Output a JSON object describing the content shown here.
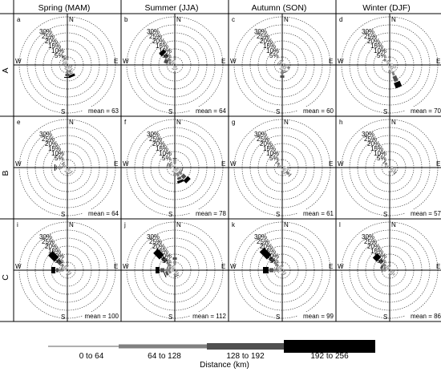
{
  "columns": [
    "Spring (MAM)",
    "Summer (JJA)",
    "Autumn (SON)",
    "Winter (DJF)"
  ],
  "rows": [
    "A",
    "B",
    "C"
  ],
  "ring_labels": [
    "30%",
    "25%",
    "20%",
    "15%",
    "10%",
    "5%"
  ],
  "compass": {
    "n": "N",
    "e": "E",
    "s": "S",
    "w": "W"
  },
  "legend": {
    "title": "Distance (km)",
    "classes": [
      {
        "label": "0 to 64",
        "color": "#b0b0b0"
      },
      {
        "label": "64 to 128",
        "color": "#808080"
      },
      {
        "label": "128 to 192",
        "color": "#505050"
      },
      {
        "label": "192 to 256",
        "color": "#000000"
      }
    ]
  },
  "chart_data": {
    "type": "wind-rose",
    "directions": [
      "N",
      "NNE",
      "NE",
      "ENE",
      "E",
      "ESE",
      "SE",
      "SSE",
      "S",
      "SSW",
      "SW",
      "WSW",
      "W",
      "WNW",
      "NW",
      "NNW"
    ],
    "rmax": 30,
    "rings": [
      5,
      10,
      15,
      20,
      25,
      30
    ],
    "panels": [
      {
        "letter": "a",
        "row": "A",
        "column": "Spring (MAM)",
        "mean": "mean = 63",
        "segments": [
          [
            3,
            1,
            0,
            0
          ],
          [
            1,
            0,
            0,
            0
          ],
          [
            1,
            0,
            0,
            0
          ],
          [
            1,
            0,
            0,
            0
          ],
          [
            1,
            0,
            0,
            0
          ],
          [
            2,
            1,
            0,
            0
          ],
          [
            3,
            1,
            0,
            0
          ],
          [
            3,
            2,
            1,
            2
          ],
          [
            3,
            2,
            2,
            1
          ],
          [
            2,
            1,
            0,
            0
          ],
          [
            1,
            1,
            0,
            0
          ],
          [
            1,
            0,
            0,
            0
          ],
          [
            1,
            0,
            0,
            0
          ],
          [
            2,
            1,
            0,
            0
          ],
          [
            3,
            1,
            0,
            0
          ],
          [
            3,
            2,
            1,
            0
          ]
        ]
      },
      {
        "letter": "b",
        "row": "A",
        "column": "Summer (JJA)",
        "mean": "mean = 64",
        "segments": [
          [
            3,
            1,
            0,
            0
          ],
          [
            1,
            0,
            0,
            0
          ],
          [
            1,
            0,
            0,
            0
          ],
          [
            1,
            0,
            0,
            0
          ],
          [
            1,
            0,
            0,
            0
          ],
          [
            1,
            0,
            0,
            0
          ],
          [
            2,
            0,
            0,
            0
          ],
          [
            2,
            1,
            0,
            0
          ],
          [
            4,
            1,
            0,
            0
          ],
          [
            2,
            1,
            0,
            0
          ],
          [
            1,
            0,
            0,
            0
          ],
          [
            1,
            0,
            0,
            0
          ],
          [
            1,
            0,
            0,
            0
          ],
          [
            2,
            2,
            3,
            0
          ],
          [
            3,
            3,
            3,
            3
          ],
          [
            2,
            1,
            0,
            0
          ]
        ]
      },
      {
        "letter": "c",
        "row": "A",
        "column": "Autumn (SON)",
        "mean": "mean = 60",
        "segments": [
          [
            2,
            1,
            0,
            0
          ],
          [
            1,
            0,
            0,
            0
          ],
          [
            1,
            0,
            0,
            0
          ],
          [
            2,
            0,
            0,
            0
          ],
          [
            1,
            0,
            0,
            0
          ],
          [
            3,
            2,
            0,
            0
          ],
          [
            2,
            1,
            0,
            0
          ],
          [
            3,
            1,
            1,
            0
          ],
          [
            3,
            3,
            2,
            0
          ],
          [
            2,
            1,
            0,
            0
          ],
          [
            1,
            0,
            0,
            0
          ],
          [
            1,
            0,
            0,
            0
          ],
          [
            1,
            0,
            0,
            0
          ],
          [
            2,
            1,
            0,
            0
          ],
          [
            1,
            1,
            0,
            0
          ],
          [
            2,
            1,
            0,
            0
          ]
        ]
      },
      {
        "letter": "d",
        "row": "A",
        "column": "Winter (DJF)",
        "mean": "mean = 70",
        "segments": [
          [
            2,
            1,
            0,
            0
          ],
          [
            1,
            0,
            0,
            0
          ],
          [
            1,
            0,
            0,
            0
          ],
          [
            2,
            0,
            0,
            0
          ],
          [
            2,
            0,
            0,
            0
          ],
          [
            3,
            1,
            0,
            0
          ],
          [
            2,
            1,
            0,
            0
          ],
          [
            4,
            3,
            4,
            4
          ],
          [
            3,
            2,
            0,
            0
          ],
          [
            2,
            0,
            0,
            0
          ],
          [
            1,
            0,
            0,
            0
          ],
          [
            1,
            0,
            0,
            0
          ],
          [
            1,
            0,
            0,
            0
          ],
          [
            2,
            0,
            0,
            0
          ],
          [
            3,
            2,
            0,
            0
          ],
          [
            2,
            1,
            0,
            0
          ]
        ]
      },
      {
        "letter": "e",
        "row": "B",
        "column": "Spring (MAM)",
        "mean": "mean = 64",
        "segments": [
          [
            1,
            0,
            0,
            0
          ],
          [
            1,
            0,
            0,
            0
          ],
          [
            1,
            0,
            0,
            0
          ],
          [
            1,
            0,
            0,
            0
          ],
          [
            1,
            0,
            0,
            0
          ],
          [
            2,
            0,
            0,
            0
          ],
          [
            3,
            1,
            0,
            0
          ],
          [
            3,
            1,
            0,
            0
          ],
          [
            3,
            1,
            0,
            0
          ],
          [
            2,
            1,
            0,
            0
          ],
          [
            1,
            0,
            0,
            0
          ],
          [
            1,
            0,
            0,
            0
          ],
          [
            3,
            3,
            1,
            1
          ],
          [
            1,
            1,
            1,
            0
          ],
          [
            2,
            1,
            1,
            0
          ],
          [
            1,
            0,
            0,
            0
          ]
        ]
      },
      {
        "letter": "f",
        "row": "B",
        "column": "Summer (JJA)",
        "mean": "mean = 78",
        "segments": [
          [
            2,
            3,
            1,
            0
          ],
          [
            1,
            0,
            0,
            0
          ],
          [
            1,
            0,
            0,
            0
          ],
          [
            1,
            0,
            0,
            0
          ],
          [
            1,
            0,
            0,
            0
          ],
          [
            3,
            1,
            1,
            0
          ],
          [
            3,
            3,
            3,
            3
          ],
          [
            3,
            3,
            2,
            2
          ],
          [
            3,
            2,
            0,
            0
          ],
          [
            2,
            1,
            0,
            0
          ],
          [
            1,
            0,
            0,
            0
          ],
          [
            1,
            0,
            0,
            0
          ],
          [
            2,
            1,
            0,
            0
          ],
          [
            2,
            2,
            1,
            0
          ],
          [
            2,
            1,
            1,
            0
          ],
          [
            1,
            0,
            0,
            0
          ]
        ]
      },
      {
        "letter": "g",
        "row": "B",
        "column": "Autumn (SON)",
        "mean": "mean = 61",
        "segments": [
          [
            1,
            0,
            0,
            0
          ],
          [
            1,
            0,
            0,
            0
          ],
          [
            1,
            0,
            0,
            0
          ],
          [
            2,
            0,
            0,
            0
          ],
          [
            3,
            0,
            0,
            0
          ],
          [
            3,
            1,
            0,
            0
          ],
          [
            3,
            3,
            1,
            0
          ],
          [
            3,
            1,
            0,
            0
          ],
          [
            2,
            1,
            0,
            0
          ],
          [
            1,
            0,
            0,
            0
          ],
          [
            1,
            0,
            0,
            0
          ],
          [
            1,
            0,
            0,
            0
          ],
          [
            1,
            0,
            0,
            0
          ],
          [
            1,
            1,
            1,
            0
          ],
          [
            2,
            2,
            1,
            0
          ],
          [
            1,
            0,
            0,
            0
          ]
        ]
      },
      {
        "letter": "h",
        "row": "B",
        "column": "Winter (DJF)",
        "mean": "mean = 57",
        "segments": [
          [
            1,
            0,
            0,
            0
          ],
          [
            1,
            0,
            0,
            0
          ],
          [
            1,
            0,
            0,
            0
          ],
          [
            2,
            0,
            0,
            0
          ],
          [
            2,
            0,
            0,
            0
          ],
          [
            3,
            1,
            0,
            0
          ],
          [
            3,
            1,
            1,
            0
          ],
          [
            2,
            1,
            0,
            0
          ],
          [
            2,
            1,
            0,
            0
          ],
          [
            1,
            0,
            0,
            0
          ],
          [
            1,
            0,
            0,
            0
          ],
          [
            1,
            0,
            0,
            0
          ],
          [
            1,
            0,
            0,
            0
          ],
          [
            2,
            1,
            0,
            0
          ],
          [
            2,
            2,
            1,
            0
          ],
          [
            1,
            0,
            0,
            0
          ]
        ]
      },
      {
        "letter": "i",
        "row": "C",
        "column": "Spring (MAM)",
        "mean": "mean = 100",
        "segments": [
          [
            2,
            1,
            0,
            0
          ],
          [
            1,
            0,
            0,
            0
          ],
          [
            1,
            0,
            0,
            0
          ],
          [
            1,
            0,
            0,
            0
          ],
          [
            1,
            0,
            0,
            0
          ],
          [
            2,
            0,
            0,
            0
          ],
          [
            2,
            1,
            0,
            0
          ],
          [
            2,
            1,
            0,
            0
          ],
          [
            2,
            1,
            0,
            0
          ],
          [
            1,
            0,
            0,
            0
          ],
          [
            1,
            0,
            0,
            0
          ],
          [
            1,
            0,
            0,
            0
          ],
          [
            2,
            3,
            2,
            3
          ],
          [
            2,
            1,
            1,
            0
          ],
          [
            3,
            2,
            4,
            6
          ],
          [
            2,
            1,
            0,
            0
          ]
        ]
      },
      {
        "letter": "j",
        "row": "C",
        "column": "Summer (JJA)",
        "mean": "mean = 112",
        "segments": [
          [
            3,
            3,
            2,
            0
          ],
          [
            1,
            0,
            0,
            0
          ],
          [
            1,
            0,
            0,
            0
          ],
          [
            1,
            0,
            0,
            0
          ],
          [
            1,
            0,
            0,
            0
          ],
          [
            2,
            0,
            0,
            0
          ],
          [
            2,
            1,
            0,
            0
          ],
          [
            2,
            1,
            1,
            0
          ],
          [
            2,
            1,
            0,
            0
          ],
          [
            1,
            0,
            0,
            0
          ],
          [
            1,
            0,
            0,
            0
          ],
          [
            2,
            2,
            2,
            1
          ],
          [
            3,
            3,
            3,
            3
          ],
          [
            2,
            2,
            1,
            0
          ],
          [
            3,
            4,
            4,
            6
          ],
          [
            2,
            1,
            0,
            0
          ]
        ]
      },
      {
        "letter": "k",
        "row": "C",
        "column": "Autumn (SON)",
        "mean": "mean = 99",
        "segments": [
          [
            2,
            1,
            0,
            0
          ],
          [
            1,
            0,
            0,
            0
          ],
          [
            1,
            0,
            0,
            0
          ],
          [
            1,
            0,
            0,
            0
          ],
          [
            1,
            0,
            0,
            0
          ],
          [
            2,
            0,
            0,
            0
          ],
          [
            2,
            1,
            0,
            0
          ],
          [
            2,
            1,
            0,
            0
          ],
          [
            2,
            1,
            0,
            0
          ],
          [
            1,
            0,
            0,
            0
          ],
          [
            1,
            0,
            0,
            0
          ],
          [
            2,
            1,
            0,
            0
          ],
          [
            2,
            3,
            3,
            4
          ],
          [
            2,
            1,
            1,
            0
          ],
          [
            3,
            4,
            4,
            7
          ],
          [
            2,
            1,
            0,
            0
          ]
        ]
      },
      {
        "letter": "l",
        "row": "C",
        "column": "Winter (DJF)",
        "mean": "mean = 86",
        "segments": [
          [
            2,
            1,
            0,
            0
          ],
          [
            1,
            0,
            0,
            0
          ],
          [
            1,
            0,
            0,
            0
          ],
          [
            1,
            0,
            0,
            0
          ],
          [
            1,
            0,
            0,
            0
          ],
          [
            2,
            1,
            0,
            0
          ],
          [
            3,
            1,
            0,
            0
          ],
          [
            2,
            1,
            0,
            0
          ],
          [
            2,
            1,
            0,
            0
          ],
          [
            1,
            0,
            0,
            0
          ],
          [
            1,
            0,
            0,
            0
          ],
          [
            1,
            0,
            0,
            0
          ],
          [
            2,
            2,
            1,
            0
          ],
          [
            2,
            2,
            2,
            0
          ],
          [
            3,
            3,
            3,
            4
          ],
          [
            2,
            1,
            0,
            0
          ]
        ]
      }
    ]
  }
}
